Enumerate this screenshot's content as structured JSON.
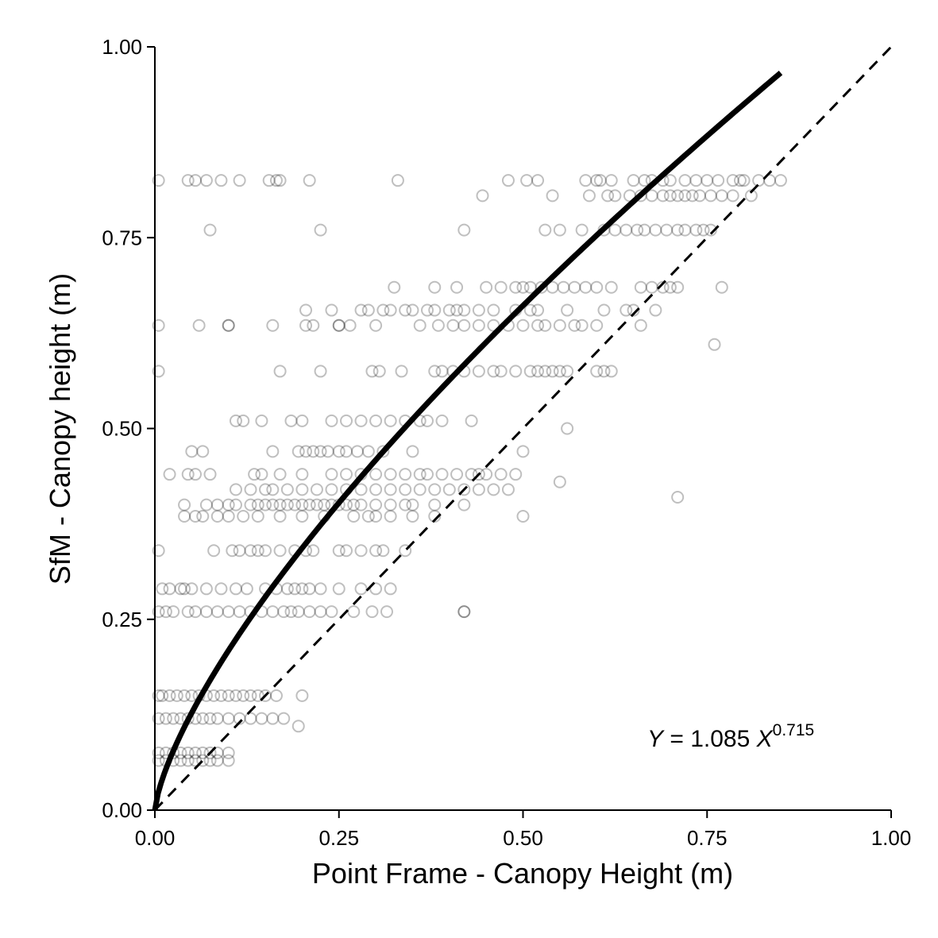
{
  "chart_data": {
    "type": "scatter",
    "title": "",
    "xlabel": "Point Frame - Canopy Height (m)",
    "ylabel": "SfM - Canopy height (m)",
    "xlim": [
      0,
      1
    ],
    "ylim": [
      0,
      1
    ],
    "xticks": [
      "0.00",
      "0.25",
      "0.50",
      "0.75",
      "1.00"
    ],
    "yticks": [
      "0.00",
      "0.25",
      "0.50",
      "0.75",
      "1.00"
    ],
    "grid": false,
    "legend": "none",
    "annotation": {
      "lhs": "Y",
      "equals": " = 1.085 ",
      "var": "X",
      "exponent": "0.715"
    },
    "fit": {
      "type": "power",
      "a": 1.085,
      "b": 0.715,
      "x_range": [
        0,
        0.85
      ],
      "color": "#000000"
    },
    "reference_line": {
      "type": "one-to-one",
      "style": "dashed",
      "color": "#000000"
    },
    "point_style": {
      "marker": "open-circle",
      "color": "#000000",
      "opacity": 0.25
    },
    "series": [
      {
        "x": [
          0.005,
          0.045,
          0.055,
          0.07,
          0.09,
          0.115,
          0.155,
          0.165,
          0.17,
          0.21,
          0.33,
          0.48,
          0.505,
          0.52,
          0.585,
          0.6,
          0.605,
          0.62,
          0.65,
          0.665,
          0.675,
          0.69,
          0.7,
          0.72,
          0.735,
          0.75,
          0.765,
          0.785,
          0.795,
          0.8,
          0.82,
          0.835,
          0.85,
          0.445,
          0.54,
          0.59,
          0.615,
          0.625,
          0.645,
          0.66,
          0.675,
          0.69,
          0.7,
          0.71,
          0.72,
          0.73,
          0.74,
          0.755,
          0.77,
          0.785,
          0.81,
          0.075,
          0.225,
          0.42,
          0.53,
          0.55,
          0.58,
          0.61,
          0.625,
          0.64,
          0.655,
          0.665,
          0.68,
          0.695,
          0.71,
          0.72,
          0.735,
          0.745,
          0.755,
          0.325,
          0.38,
          0.41,
          0.45,
          0.47,
          0.49,
          0.5,
          0.51,
          0.525,
          0.54,
          0.555,
          0.57,
          0.585,
          0.6,
          0.62,
          0.66,
          0.675,
          0.69,
          0.7,
          0.71,
          0.77,
          0.205,
          0.24,
          0.28,
          0.29,
          0.31,
          0.32,
          0.34,
          0.35,
          0.37,
          0.38,
          0.4,
          0.41,
          0.42,
          0.44,
          0.46,
          0.49,
          0.51,
          0.52,
          0.56,
          0.61,
          0.64,
          0.65,
          0.68,
          0.005,
          0.06,
          0.1,
          0.1,
          0.16,
          0.205,
          0.215,
          0.25,
          0.25,
          0.265,
          0.3,
          0.36,
          0.385,
          0.405,
          0.42,
          0.44,
          0.46,
          0.48,
          0.5,
          0.52,
          0.53,
          0.55,
          0.57,
          0.58,
          0.6,
          0.66,
          0.76,
          0.005,
          0.17,
          0.225,
          0.295,
          0.305,
          0.335,
          0.38,
          0.39,
          0.405,
          0.42,
          0.44,
          0.46,
          0.47,
          0.49,
          0.51,
          0.52,
          0.53,
          0.54,
          0.55,
          0.56,
          0.6,
          0.61,
          0.62,
          0.11,
          0.12,
          0.145,
          0.185,
          0.2,
          0.24,
          0.26,
          0.28,
          0.3,
          0.32,
          0.34,
          0.36,
          0.37,
          0.39,
          0.43,
          0.56,
          0.05,
          0.065,
          0.16,
          0.195,
          0.205,
          0.215,
          0.225,
          0.235,
          0.25,
          0.26,
          0.275,
          0.29,
          0.31,
          0.35,
          0.5,
          0.02,
          0.045,
          0.055,
          0.075,
          0.135,
          0.145,
          0.17,
          0.2,
          0.24,
          0.26,
          0.28,
          0.3,
          0.32,
          0.34,
          0.36,
          0.37,
          0.39,
          0.41,
          0.43,
          0.44,
          0.45,
          0.47,
          0.49,
          0.11,
          0.13,
          0.15,
          0.16,
          0.18,
          0.2,
          0.22,
          0.24,
          0.26,
          0.28,
          0.3,
          0.32,
          0.34,
          0.36,
          0.38,
          0.4,
          0.42,
          0.44,
          0.46,
          0.48,
          0.55,
          0.71,
          0.04,
          0.07,
          0.085,
          0.1,
          0.11,
          0.13,
          0.14,
          0.15,
          0.16,
          0.17,
          0.18,
          0.19,
          0.2,
          0.21,
          0.22,
          0.23,
          0.24,
          0.25,
          0.26,
          0.27,
          0.28,
          0.3,
          0.32,
          0.34,
          0.35,
          0.38,
          0.42,
          0.04,
          0.055,
          0.065,
          0.085,
          0.1,
          0.12,
          0.14,
          0.17,
          0.2,
          0.23,
          0.27,
          0.29,
          0.3,
          0.32,
          0.35,
          0.38,
          0.5,
          0.005,
          0.08,
          0.105,
          0.115,
          0.13,
          0.14,
          0.15,
          0.17,
          0.19,
          0.205,
          0.215,
          0.25,
          0.26,
          0.28,
          0.3,
          0.31,
          0.34,
          0.01,
          0.02,
          0.035,
          0.04,
          0.05,
          0.07,
          0.09,
          0.11,
          0.125,
          0.15,
          0.165,
          0.18,
          0.19,
          0.2,
          0.21,
          0.225,
          0.25,
          0.28,
          0.3,
          0.32,
          0.42,
          0.005,
          0.015,
          0.025,
          0.045,
          0.055,
          0.07,
          0.085,
          0.1,
          0.115,
          0.13,
          0.145,
          0.16,
          0.175,
          0.185,
          0.195,
          0.21,
          0.225,
          0.24,
          0.27,
          0.295,
          0.315,
          0.42,
          0.005,
          0.01,
          0.02,
          0.03,
          0.04,
          0.05,
          0.06,
          0.07,
          0.08,
          0.09,
          0.1,
          0.11,
          0.12,
          0.13,
          0.14,
          0.15,
          0.165,
          0.2,
          0.005,
          0.015,
          0.025,
          0.035,
          0.045,
          0.055,
          0.065,
          0.075,
          0.085,
          0.1,
          0.115,
          0.13,
          0.145,
          0.16,
          0.175,
          0.195,
          0.005,
          0.015,
          0.025,
          0.035,
          0.045,
          0.055,
          0.065,
          0.075,
          0.085,
          0.1,
          0.005,
          0.015,
          0.025,
          0.035,
          0.045,
          0.055,
          0.065,
          0.075,
          0.085,
          0.1
        ],
        "y": [
          0.825,
          0.825,
          0.825,
          0.825,
          0.825,
          0.825,
          0.825,
          0.825,
          0.825,
          0.825,
          0.825,
          0.825,
          0.825,
          0.825,
          0.825,
          0.825,
          0.825,
          0.825,
          0.825,
          0.825,
          0.825,
          0.825,
          0.825,
          0.825,
          0.825,
          0.825,
          0.825,
          0.825,
          0.825,
          0.825,
          0.825,
          0.825,
          0.825,
          0.805,
          0.805,
          0.805,
          0.805,
          0.805,
          0.805,
          0.805,
          0.805,
          0.805,
          0.805,
          0.805,
          0.805,
          0.805,
          0.805,
          0.805,
          0.805,
          0.805,
          0.805,
          0.76,
          0.76,
          0.76,
          0.76,
          0.76,
          0.76,
          0.76,
          0.76,
          0.76,
          0.76,
          0.76,
          0.76,
          0.76,
          0.76,
          0.76,
          0.76,
          0.76,
          0.76,
          0.685,
          0.685,
          0.685,
          0.685,
          0.685,
          0.685,
          0.685,
          0.685,
          0.685,
          0.685,
          0.685,
          0.685,
          0.685,
          0.685,
          0.685,
          0.685,
          0.685,
          0.685,
          0.685,
          0.685,
          0.685,
          0.655,
          0.655,
          0.655,
          0.655,
          0.655,
          0.655,
          0.655,
          0.655,
          0.655,
          0.655,
          0.655,
          0.655,
          0.655,
          0.655,
          0.655,
          0.655,
          0.655,
          0.655,
          0.655,
          0.655,
          0.655,
          0.655,
          0.655,
          0.635,
          0.635,
          0.635,
          0.635,
          0.635,
          0.635,
          0.635,
          0.635,
          0.635,
          0.635,
          0.635,
          0.635,
          0.635,
          0.635,
          0.635,
          0.635,
          0.635,
          0.635,
          0.635,
          0.635,
          0.635,
          0.635,
          0.635,
          0.635,
          0.635,
          0.635,
          0.61,
          0.575,
          0.575,
          0.575,
          0.575,
          0.575,
          0.575,
          0.575,
          0.575,
          0.575,
          0.575,
          0.575,
          0.575,
          0.575,
          0.575,
          0.575,
          0.575,
          0.575,
          0.575,
          0.575,
          0.575,
          0.575,
          0.575,
          0.575,
          0.51,
          0.51,
          0.51,
          0.51,
          0.51,
          0.51,
          0.51,
          0.51,
          0.51,
          0.51,
          0.51,
          0.51,
          0.51,
          0.51,
          0.51,
          0.5,
          0.47,
          0.47,
          0.47,
          0.47,
          0.47,
          0.47,
          0.47,
          0.47,
          0.47,
          0.47,
          0.47,
          0.47,
          0.47,
          0.47,
          0.47,
          0.44,
          0.44,
          0.44,
          0.44,
          0.44,
          0.44,
          0.44,
          0.44,
          0.44,
          0.44,
          0.44,
          0.44,
          0.44,
          0.44,
          0.44,
          0.44,
          0.44,
          0.44,
          0.44,
          0.44,
          0.44,
          0.44,
          0.44,
          0.42,
          0.42,
          0.42,
          0.42,
          0.42,
          0.42,
          0.42,
          0.42,
          0.42,
          0.42,
          0.42,
          0.42,
          0.42,
          0.42,
          0.42,
          0.42,
          0.42,
          0.42,
          0.42,
          0.42,
          0.43,
          0.41,
          0.4,
          0.4,
          0.4,
          0.4,
          0.4,
          0.4,
          0.4,
          0.4,
          0.4,
          0.4,
          0.4,
          0.4,
          0.4,
          0.4,
          0.4,
          0.4,
          0.4,
          0.4,
          0.4,
          0.4,
          0.4,
          0.4,
          0.4,
          0.4,
          0.4,
          0.4,
          0.4,
          0.385,
          0.385,
          0.385,
          0.385,
          0.385,
          0.385,
          0.385,
          0.385,
          0.385,
          0.385,
          0.385,
          0.385,
          0.385,
          0.385,
          0.385,
          0.385,
          0.385,
          0.34,
          0.34,
          0.34,
          0.34,
          0.34,
          0.34,
          0.34,
          0.34,
          0.34,
          0.34,
          0.34,
          0.34,
          0.34,
          0.34,
          0.34,
          0.34,
          0.34,
          0.29,
          0.29,
          0.29,
          0.29,
          0.29,
          0.29,
          0.29,
          0.29,
          0.29,
          0.29,
          0.29,
          0.29,
          0.29,
          0.29,
          0.29,
          0.29,
          0.29,
          0.29,
          0.29,
          0.29,
          0.26,
          0.26,
          0.26,
          0.26,
          0.26,
          0.26,
          0.26,
          0.26,
          0.26,
          0.26,
          0.26,
          0.26,
          0.26,
          0.26,
          0.26,
          0.26,
          0.26,
          0.26,
          0.26,
          0.26,
          0.26,
          0.26,
          0.26,
          0.15,
          0.15,
          0.15,
          0.15,
          0.15,
          0.15,
          0.15,
          0.15,
          0.15,
          0.15,
          0.15,
          0.15,
          0.15,
          0.15,
          0.15,
          0.15,
          0.15,
          0.15,
          0.12,
          0.12,
          0.12,
          0.12,
          0.12,
          0.12,
          0.12,
          0.12,
          0.12,
          0.12,
          0.12,
          0.12,
          0.12,
          0.12,
          0.12,
          0.11,
          0.075,
          0.075,
          0.075,
          0.075,
          0.075,
          0.075,
          0.075,
          0.075,
          0.075,
          0.075,
          0.065,
          0.065,
          0.065,
          0.065,
          0.065,
          0.065,
          0.065,
          0.065,
          0.065,
          0.065
        ]
      }
    ]
  }
}
